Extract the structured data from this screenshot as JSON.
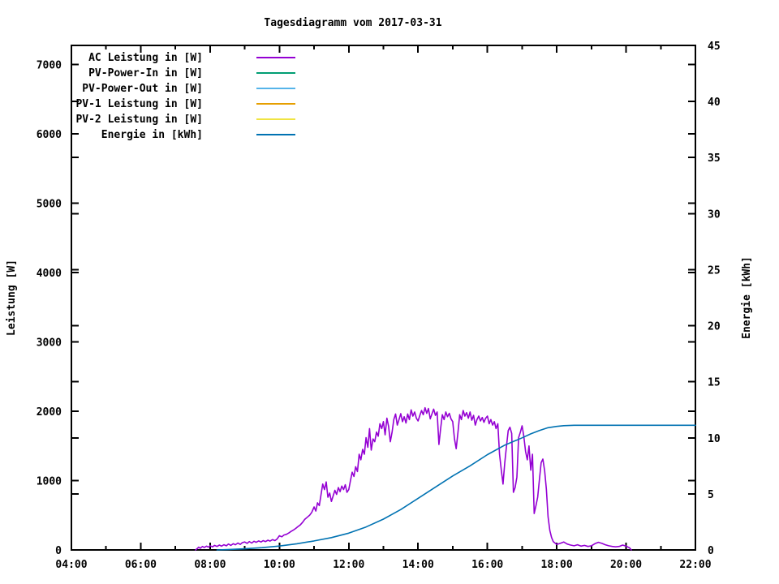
{
  "window": {
    "background": "#ffffff"
  },
  "chart_data": {
    "type": "line",
    "title": "Tagesdiagramm vom 2017-03-31",
    "grid": "off",
    "legend_position": "top-left-inside",
    "border_color": "#000000",
    "x_axis": {
      "unit": "time",
      "start_hour": 4,
      "end_hour": 22,
      "major_step_hours": 2,
      "minor_step_hours": 1,
      "major_labels": [
        "04:00",
        "06:00",
        "08:00",
        "10:00",
        "12:00",
        "14:00",
        "16:00",
        "18:00",
        "20:00",
        "22:00"
      ]
    },
    "y_left": {
      "label": "Leistung [W]",
      "range": [
        0,
        7275
      ],
      "ticks": [
        0,
        1000,
        2000,
        3000,
        4000,
        5000,
        6000,
        7000
      ]
    },
    "y_right": {
      "label": "Energie [kWh]",
      "range": [
        0,
        45
      ],
      "ticks": [
        0,
        5,
        10,
        15,
        20,
        25,
        30,
        35,
        40,
        45
      ]
    },
    "series": [
      {
        "name": "AC Leistung in [W]",
        "color": "#9400d3",
        "axis": "left",
        "points": [
          [
            7.58,
            0
          ],
          [
            7.62,
            15
          ],
          [
            7.67,
            40
          ],
          [
            7.72,
            25
          ],
          [
            7.78,
            50
          ],
          [
            7.83,
            35
          ],
          [
            7.9,
            55
          ],
          [
            7.95,
            40
          ],
          [
            8.0,
            60
          ],
          [
            8.07,
            45
          ],
          [
            8.13,
            65
          ],
          [
            8.2,
            50
          ],
          [
            8.27,
            70
          ],
          [
            8.33,
            55
          ],
          [
            8.4,
            75
          ],
          [
            8.47,
            60
          ],
          [
            8.53,
            85
          ],
          [
            8.6,
            65
          ],
          [
            8.67,
            90
          ],
          [
            8.73,
            75
          ],
          [
            8.8,
            100
          ],
          [
            8.87,
            80
          ],
          [
            8.93,
            105
          ],
          [
            9.0,
            115
          ],
          [
            9.07,
            95
          ],
          [
            9.13,
            120
          ],
          [
            9.2,
            100
          ],
          [
            9.27,
            125
          ],
          [
            9.33,
            110
          ],
          [
            9.4,
            130
          ],
          [
            9.47,
            115
          ],
          [
            9.53,
            135
          ],
          [
            9.6,
            120
          ],
          [
            9.67,
            140
          ],
          [
            9.73,
            128
          ],
          [
            9.8,
            148
          ],
          [
            9.87,
            135
          ],
          [
            9.93,
            155
          ],
          [
            10.0,
            205
          ],
          [
            10.07,
            190
          ],
          [
            10.13,
            215
          ],
          [
            10.2,
            225
          ],
          [
            10.27,
            245
          ],
          [
            10.33,
            265
          ],
          [
            10.4,
            285
          ],
          [
            10.47,
            310
          ],
          [
            10.53,
            335
          ],
          [
            10.6,
            360
          ],
          [
            10.67,
            400
          ],
          [
            10.73,
            440
          ],
          [
            10.8,
            470
          ],
          [
            10.87,
            500
          ],
          [
            10.93,
            540
          ],
          [
            11.0,
            620
          ],
          [
            11.05,
            560
          ],
          [
            11.1,
            680
          ],
          [
            11.15,
            640
          ],
          [
            11.2,
            795
          ],
          [
            11.25,
            950
          ],
          [
            11.3,
            870
          ],
          [
            11.35,
            980
          ],
          [
            11.4,
            760
          ],
          [
            11.45,
            820
          ],
          [
            11.5,
            700
          ],
          [
            11.55,
            780
          ],
          [
            11.6,
            860
          ],
          [
            11.65,
            800
          ],
          [
            11.7,
            900
          ],
          [
            11.75,
            840
          ],
          [
            11.8,
            920
          ],
          [
            11.85,
            870
          ],
          [
            11.9,
            940
          ],
          [
            11.95,
            830
          ],
          [
            12.0,
            870
          ],
          [
            12.05,
            1000
          ],
          [
            12.1,
            1120
          ],
          [
            12.15,
            1060
          ],
          [
            12.2,
            1200
          ],
          [
            12.25,
            1130
          ],
          [
            12.3,
            1380
          ],
          [
            12.35,
            1300
          ],
          [
            12.4,
            1450
          ],
          [
            12.45,
            1380
          ],
          [
            12.5,
            1620
          ],
          [
            12.55,
            1480
          ],
          [
            12.6,
            1750
          ],
          [
            12.65,
            1440
          ],
          [
            12.7,
            1600
          ],
          [
            12.75,
            1560
          ],
          [
            12.8,
            1700
          ],
          [
            12.85,
            1640
          ],
          [
            12.9,
            1820
          ],
          [
            12.95,
            1750
          ],
          [
            13.0,
            1850
          ],
          [
            13.05,
            1660
          ],
          [
            13.1,
            1900
          ],
          [
            13.15,
            1780
          ],
          [
            13.2,
            1560
          ],
          [
            13.25,
            1700
          ],
          [
            13.3,
            1880
          ],
          [
            13.35,
            1960
          ],
          [
            13.4,
            1800
          ],
          [
            13.45,
            1880
          ],
          [
            13.5,
            1965
          ],
          [
            13.55,
            1850
          ],
          [
            13.6,
            1920
          ],
          [
            13.65,
            1830
          ],
          [
            13.7,
            1960
          ],
          [
            13.75,
            1880
          ],
          [
            13.8,
            2020
          ],
          [
            13.85,
            1930
          ],
          [
            13.9,
            1990
          ],
          [
            13.95,
            1900
          ],
          [
            14.0,
            1860
          ],
          [
            14.05,
            1940
          ],
          [
            14.1,
            2010
          ],
          [
            14.15,
            1950
          ],
          [
            14.2,
            2050
          ],
          [
            14.25,
            1970
          ],
          [
            14.3,
            2040
          ],
          [
            14.35,
            1890
          ],
          [
            14.4,
            1960
          ],
          [
            14.45,
            2030
          ],
          [
            14.5,
            1940
          ],
          [
            14.55,
            1990
          ],
          [
            14.6,
            1520
          ],
          [
            14.65,
            1750
          ],
          [
            14.7,
            1950
          ],
          [
            14.75,
            1880
          ],
          [
            14.8,
            1990
          ],
          [
            14.85,
            1920
          ],
          [
            14.9,
            1970
          ],
          [
            14.95,
            1890
          ],
          [
            15.0,
            1850
          ],
          [
            15.05,
            1600
          ],
          [
            15.1,
            1460
          ],
          [
            15.15,
            1700
          ],
          [
            15.2,
            1950
          ],
          [
            15.25,
            1880
          ],
          [
            15.3,
            2010
          ],
          [
            15.35,
            1930
          ],
          [
            15.4,
            1980
          ],
          [
            15.45,
            1900
          ],
          [
            15.5,
            1990
          ],
          [
            15.55,
            1870
          ],
          [
            15.6,
            1940
          ],
          [
            15.65,
            1800
          ],
          [
            15.7,
            1880
          ],
          [
            15.75,
            1930
          ],
          [
            15.8,
            1860
          ],
          [
            15.85,
            1910
          ],
          [
            15.9,
            1840
          ],
          [
            15.95,
            1900
          ],
          [
            16.0,
            1930
          ],
          [
            16.05,
            1820
          ],
          [
            16.1,
            1880
          ],
          [
            16.15,
            1800
          ],
          [
            16.2,
            1850
          ],
          [
            16.25,
            1750
          ],
          [
            16.3,
            1820
          ],
          [
            16.35,
            1380
          ],
          [
            16.4,
            1150
          ],
          [
            16.45,
            950
          ],
          [
            16.5,
            1250
          ],
          [
            16.55,
            1500
          ],
          [
            16.6,
            1720
          ],
          [
            16.65,
            1770
          ],
          [
            16.7,
            1680
          ],
          [
            16.75,
            830
          ],
          [
            16.8,
            900
          ],
          [
            16.85,
            1050
          ],
          [
            16.9,
            1620
          ],
          [
            16.95,
            1700
          ],
          [
            17.0,
            1790
          ],
          [
            17.05,
            1640
          ],
          [
            17.1,
            1420
          ],
          [
            17.15,
            1300
          ],
          [
            17.2,
            1500
          ],
          [
            17.25,
            1150
          ],
          [
            17.3,
            1380
          ],
          [
            17.35,
            525
          ],
          [
            17.4,
            640
          ],
          [
            17.45,
            760
          ],
          [
            17.5,
            1020
          ],
          [
            17.55,
            1260
          ],
          [
            17.6,
            1310
          ],
          [
            17.65,
            1140
          ],
          [
            17.7,
            880
          ],
          [
            17.75,
            480
          ],
          [
            17.8,
            280
          ],
          [
            17.85,
            180
          ],
          [
            17.9,
            120
          ],
          [
            17.95,
            100
          ],
          [
            18.0,
            80
          ],
          [
            18.1,
            95
          ],
          [
            18.2,
            115
          ],
          [
            18.3,
            85
          ],
          [
            18.4,
            70
          ],
          [
            18.5,
            60
          ],
          [
            18.6,
            75
          ],
          [
            18.7,
            55
          ],
          [
            18.8,
            65
          ],
          [
            18.9,
            50
          ],
          [
            19.0,
            60
          ],
          [
            19.1,
            90
          ],
          [
            19.2,
            110
          ],
          [
            19.3,
            95
          ],
          [
            19.4,
            75
          ],
          [
            19.5,
            60
          ],
          [
            19.6,
            50
          ],
          [
            19.7,
            45
          ],
          [
            19.8,
            50
          ],
          [
            19.9,
            70
          ],
          [
            20.0,
            55
          ],
          [
            20.1,
            30
          ],
          [
            20.15,
            0
          ]
        ]
      },
      {
        "name": "PV-Power-In in [W]",
        "color": "#009e73",
        "axis": "left",
        "points": []
      },
      {
        "name": "PV-Power-Out in [W]",
        "color": "#56b4e9",
        "axis": "left",
        "points": []
      },
      {
        "name": "PV-1 Leistung in [W]",
        "color": "#e69f00",
        "axis": "left",
        "points": []
      },
      {
        "name": "PV-2 Leistung in [W]",
        "color": "#f0e442",
        "axis": "left",
        "points": []
      },
      {
        "name": "Energie in [kWh]",
        "color": "#0072b2",
        "axis": "right",
        "points": [
          [
            8.2,
            0
          ],
          [
            8.5,
            0.03
          ],
          [
            9.0,
            0.1
          ],
          [
            9.5,
            0.2
          ],
          [
            10.0,
            0.35
          ],
          [
            10.5,
            0.55
          ],
          [
            11.0,
            0.8
          ],
          [
            11.5,
            1.1
          ],
          [
            12.0,
            1.5
          ],
          [
            12.5,
            2.05
          ],
          [
            13.0,
            2.75
          ],
          [
            13.5,
            3.6
          ],
          [
            14.0,
            4.6
          ],
          [
            14.5,
            5.6
          ],
          [
            15.0,
            6.6
          ],
          [
            15.5,
            7.5
          ],
          [
            16.0,
            8.5
          ],
          [
            16.5,
            9.35
          ],
          [
            17.0,
            10.0
          ],
          [
            17.25,
            10.35
          ],
          [
            17.5,
            10.65
          ],
          [
            17.75,
            10.9
          ],
          [
            18.0,
            11.02
          ],
          [
            18.2,
            11.08
          ],
          [
            18.5,
            11.12
          ],
          [
            22.0,
            11.12
          ]
        ]
      }
    ]
  }
}
